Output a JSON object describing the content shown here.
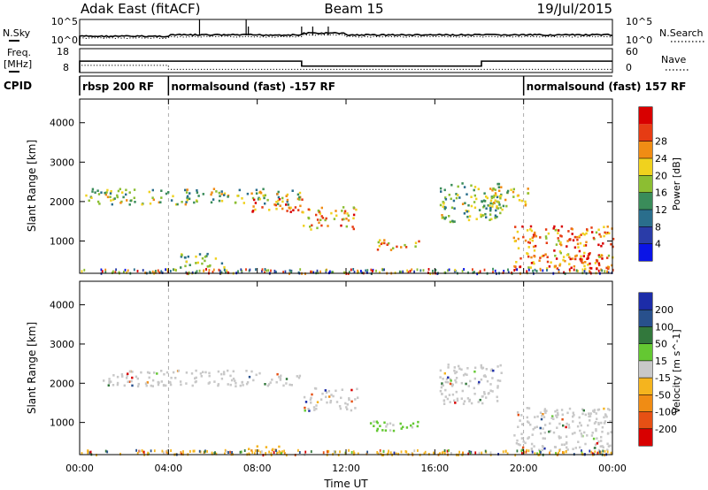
{
  "header": {
    "station": "Adak East (fitACF)",
    "beam": "Beam 15",
    "date": "19/Jul/2015"
  },
  "noise_panel": {
    "left_label": "N.Sky",
    "right_label": "N.Search",
    "left_ticks": [
      "10^5",
      "10^0"
    ],
    "right_ticks": [
      "10^5",
      "10^0"
    ]
  },
  "freq_panel": {
    "left_label_1": "Freq.",
    "left_label_2": "[MHz]",
    "left_ticks": [
      "18",
      "8"
    ],
    "right_label": "Nave",
    "right_ticks": [
      "60",
      "0"
    ],
    "freq_profile": [
      [
        0.0,
        0
      ],
      [
        0.0,
        13.5
      ],
      [
        10.0,
        13.5
      ],
      [
        10.0,
        11.0
      ],
      [
        18.1,
        11.0
      ],
      [
        18.1,
        13.5
      ],
      [
        24.0,
        13.5
      ]
    ],
    "nave_profile": [
      [
        0.0,
        0
      ],
      [
        0.0,
        18
      ],
      [
        4.0,
        18
      ],
      [
        4.0,
        8
      ],
      [
        24.0,
        8
      ]
    ]
  },
  "cpid": {
    "label": "CPID",
    "segments": [
      {
        "start_h": 0.0,
        "end_h": 4.0,
        "text": "rbsp 200 RF"
      },
      {
        "start_h": 4.0,
        "end_h": 20.0,
        "text": "normalsound (fast) -157 RF"
      },
      {
        "start_h": 20.0,
        "end_h": 24.0,
        "text": "normalsound (fast) 157 RF"
      }
    ]
  },
  "xaxis": {
    "label": "Time UT",
    "ticks": [
      "00:00",
      "04:00",
      "08:00",
      "12:00",
      "16:00",
      "20:00",
      "00:00"
    ]
  },
  "power_panel": {
    "ylabel": "Slant Range [km]",
    "yticks": [
      "1000",
      "2000",
      "3000",
      "4000"
    ],
    "colorbar_label": "Power [dB]",
    "colorbar_ticks": [
      "4",
      "8",
      "12",
      "16",
      "20",
      "24",
      "28"
    ],
    "colors": [
      "#0a14e6",
      "#2a3ca8",
      "#2a6e8c",
      "#3a8c5a",
      "#8cbe32",
      "#f0d21e",
      "#f08c14",
      "#e63c14",
      "#d80000"
    ]
  },
  "velocity_panel": {
    "ylabel": "Slant Range [km]",
    "yticks": [
      "1000",
      "2000",
      "3000",
      "4000"
    ],
    "colorbar_label": "Velocity [m s^-1]",
    "colorbar_ticks": [
      "200",
      "100",
      "50",
      "15",
      "-15",
      "-50",
      "-100",
      "-200"
    ],
    "colors": [
      "#1c2ca8",
      "#28508c",
      "#32783c",
      "#64c832",
      "#c8c8c8",
      "#f5b41e",
      "#f08c14",
      "#e65014",
      "#d80000"
    ]
  },
  "chart_data": {
    "type": "heatmap",
    "title": "Adak East (fitACF) Beam 15 19/Jul/2015",
    "xlabel": "Time UT",
    "ylabel": "Slant Range [km]",
    "xlim_hours": [
      0,
      24
    ],
    "ylim_km": [
      180,
      4600
    ],
    "grid": false,
    "panels": [
      {
        "name": "Power [dB]",
        "clim": [
          0,
          32
        ],
        "echo_regions": [
          {
            "t0": 0.2,
            "t1": 10.0,
            "r0": 1950,
            "r1": 2350,
            "level": 16,
            "note": "main band"
          },
          {
            "t0": 7.5,
            "t1": 10.0,
            "r0": 1750,
            "r1": 2100,
            "level": 24
          },
          {
            "t0": 10.0,
            "t1": 12.5,
            "r0": 1300,
            "r1": 1900,
            "level": 22
          },
          {
            "t0": 13.0,
            "t1": 15.3,
            "r0": 800,
            "r1": 1050,
            "level": 22
          },
          {
            "t0": 4.5,
            "t1": 6.5,
            "r0": 350,
            "r1": 700,
            "level": 14
          },
          {
            "t0": 16.2,
            "t1": 19.0,
            "r0": 1500,
            "r1": 2500,
            "level": 15
          },
          {
            "t0": 18.3,
            "t1": 20.2,
            "r0": 1900,
            "r1": 2400,
            "level": 18
          },
          {
            "t0": 19.5,
            "t1": 24.0,
            "r0": 300,
            "r1": 1400,
            "level": 24
          },
          {
            "t0": 22.0,
            "t1": 23.5,
            "r0": 300,
            "r1": 700,
            "level": 30
          }
        ]
      },
      {
        "name": "Velocity [m s^-1]",
        "clim": [
          -250,
          250
        ],
        "echo_regions": [
          {
            "t0": 1.0,
            "t1": 10.0,
            "r0": 1950,
            "r1": 2350,
            "velocity": 0
          },
          {
            "t0": 10.0,
            "t1": 12.5,
            "r0": 1300,
            "r1": 1900,
            "velocity": 0
          },
          {
            "t0": 13.0,
            "t1": 15.3,
            "r0": 800,
            "r1": 1050,
            "velocity": 30
          },
          {
            "t0": 16.2,
            "t1": 19.0,
            "r0": 1500,
            "r1": 2500,
            "velocity": 0
          },
          {
            "t0": 19.5,
            "t1": 24.0,
            "r0": 300,
            "r1": 1400,
            "velocity": 0
          },
          {
            "t0": 7.5,
            "t1": 9.0,
            "r0": 300,
            "r1": 420,
            "velocity": -40
          }
        ]
      }
    ]
  }
}
